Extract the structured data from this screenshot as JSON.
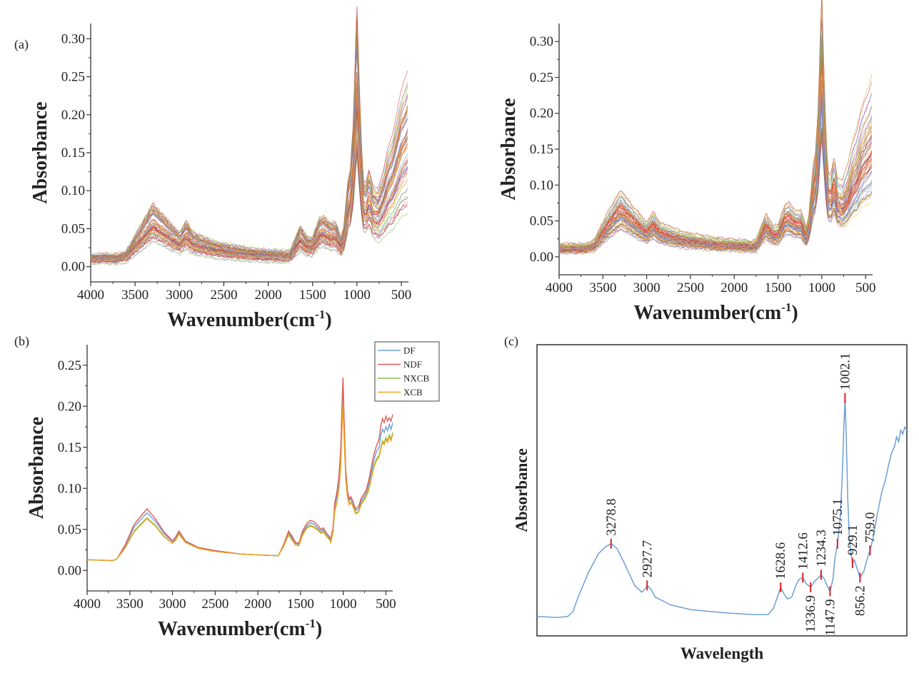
{
  "figure": {
    "panels": [
      {
        "id": "a",
        "label": "(a)"
      },
      {
        "id": "a2",
        "label": ""
      },
      {
        "id": "b",
        "label": "(b)"
      },
      {
        "id": "c",
        "label": "(c)"
      }
    ]
  },
  "chart_data": [
    {
      "id": "a",
      "type": "line",
      "title": "",
      "panel_label": "(a)",
      "xlabel": "Wavenumber(cm",
      "xlabel_sup": "-1",
      "xlabel_end": ")",
      "ylabel": "Absorbance",
      "xlim": [
        4000,
        420
      ],
      "ylim": [
        -0.02,
        0.32
      ],
      "xticks": [
        4000,
        3500,
        3000,
        2500,
        2000,
        1500,
        1000,
        500
      ],
      "yticks": [
        0.0,
        0.05,
        0.1,
        0.15,
        0.2,
        0.25,
        0.3
      ],
      "ytick_labels": [
        "0.00",
        "0.05",
        "0.10",
        "0.15",
        "0.20",
        "0.25",
        "0.30"
      ],
      "note": "many overlapping raw spectra",
      "series_count": 60,
      "representative": {
        "x": [
          4000,
          3700,
          3600,
          3450,
          3300,
          3150,
          3000,
          2925,
          2850,
          2600,
          2200,
          1800,
          1750,
          1640,
          1560,
          1500,
          1420,
          1380,
          1300,
          1240,
          1180,
          1150,
          1100,
          1075,
          1040,
          1002,
          960,
          930,
          900,
          860,
          820,
          760,
          700,
          650,
          600,
          550,
          500,
          450,
          420
        ],
        "y": [
          0.012,
          0.012,
          0.015,
          0.04,
          0.065,
          0.05,
          0.034,
          0.047,
          0.035,
          0.025,
          0.018,
          0.015,
          0.016,
          0.042,
          0.03,
          0.03,
          0.05,
          0.052,
          0.045,
          0.045,
          0.03,
          0.04,
          0.09,
          0.1,
          0.15,
          0.27,
          0.15,
          0.09,
          0.085,
          0.1,
          0.08,
          0.075,
          0.09,
          0.11,
          0.12,
          0.14,
          0.16,
          0.17,
          0.18
        ]
      }
    },
    {
      "id": "a2",
      "type": "line",
      "title": "",
      "panel_label": "",
      "xlabel": "Wavenumber(cm",
      "xlabel_sup": "-1",
      "xlabel_end": ")",
      "ylabel": "Absorbance",
      "xlim": [
        4000,
        420
      ],
      "ylim": [
        -0.025,
        0.325
      ],
      "xticks": [
        4000,
        3500,
        3000,
        2500,
        2000,
        1500,
        1000,
        500
      ],
      "yticks": [
        0.0,
        0.05,
        0.1,
        0.15,
        0.2,
        0.25,
        0.3
      ],
      "ytick_labels": [
        "0.00",
        "0.05",
        "0.10",
        "0.15",
        "0.20",
        "0.25",
        "0.30"
      ],
      "note": "many overlapping preprocessed spectra",
      "series_count": 60,
      "representative": {
        "x": [
          4000,
          3700,
          3600,
          3450,
          3300,
          3150,
          3000,
          2925,
          2850,
          2600,
          2200,
          1800,
          1750,
          1640,
          1560,
          1500,
          1420,
          1380,
          1300,
          1240,
          1180,
          1150,
          1100,
          1075,
          1040,
          1002,
          960,
          930,
          900,
          860,
          820,
          760,
          700,
          650,
          600,
          550,
          500,
          450,
          420
        ],
        "y": [
          0.012,
          0.012,
          0.016,
          0.045,
          0.07,
          0.052,
          0.035,
          0.047,
          0.035,
          0.025,
          0.018,
          0.015,
          0.016,
          0.045,
          0.032,
          0.032,
          0.055,
          0.057,
          0.048,
          0.048,
          0.03,
          0.042,
          0.095,
          0.11,
          0.16,
          0.29,
          0.15,
          0.09,
          0.085,
          0.105,
          0.08,
          0.075,
          0.09,
          0.11,
          0.12,
          0.14,
          0.15,
          0.16,
          0.17
        ]
      }
    },
    {
      "id": "b",
      "type": "line",
      "title": "",
      "panel_label": "(b)",
      "xlabel": "Wavenumber(cm",
      "xlabel_sup": "-1",
      "xlabel_end": ")",
      "ylabel": "Absorbance",
      "xlim": [
        4000,
        420
      ],
      "ylim": [
        -0.025,
        0.275
      ],
      "xticks": [
        4000,
        3500,
        3000,
        2500,
        2000,
        1500,
        1000,
        500
      ],
      "yticks": [
        0.0,
        0.05,
        0.1,
        0.15,
        0.2,
        0.25
      ],
      "ytick_labels": [
        "0.00",
        "0.05",
        "0.10",
        "0.15",
        "0.20",
        "0.25"
      ],
      "legend_position": "top-right",
      "x": [
        4000,
        3700,
        3650,
        3550,
        3450,
        3300,
        3200,
        3100,
        3000,
        2960,
        2925,
        2880,
        2850,
        2700,
        2500,
        2200,
        2000,
        1800,
        1760,
        1700,
        1640,
        1600,
        1560,
        1520,
        1480,
        1440,
        1420,
        1380,
        1340,
        1300,
        1260,
        1234,
        1200,
        1160,
        1147,
        1120,
        1100,
        1075,
        1050,
        1030,
        1015,
        1002,
        990,
        970,
        950,
        930,
        910,
        880,
        856,
        820,
        790,
        759,
        730,
        700,
        670,
        640,
        610,
        580,
        560,
        540,
        520,
        500,
        480,
        460,
        440,
        420
      ],
      "series": [
        {
          "name": "DF",
          "color": "#6c9fd6",
          "values": [
            0.013,
            0.012,
            0.014,
            0.03,
            0.053,
            0.07,
            0.06,
            0.045,
            0.035,
            0.04,
            0.047,
            0.04,
            0.035,
            0.028,
            0.024,
            0.02,
            0.019,
            0.018,
            0.018,
            0.03,
            0.046,
            0.04,
            0.033,
            0.032,
            0.045,
            0.052,
            0.055,
            0.058,
            0.056,
            0.052,
            0.048,
            0.05,
            0.045,
            0.04,
            0.037,
            0.05,
            0.078,
            0.09,
            0.11,
            0.14,
            0.19,
            0.228,
            0.18,
            0.12,
            0.095,
            0.085,
            0.088,
            0.08,
            0.073,
            0.075,
            0.085,
            0.09,
            0.095,
            0.105,
            0.12,
            0.135,
            0.145,
            0.15,
            0.165,
            0.172,
            0.168,
            0.175,
            0.17,
            0.178,
            0.172,
            0.18
          ]
        },
        {
          "name": "NDF",
          "color": "#e05a5a",
          "values": [
            0.013,
            0.012,
            0.014,
            0.032,
            0.056,
            0.075,
            0.063,
            0.047,
            0.036,
            0.041,
            0.048,
            0.041,
            0.036,
            0.028,
            0.024,
            0.02,
            0.019,
            0.018,
            0.018,
            0.031,
            0.048,
            0.042,
            0.034,
            0.033,
            0.047,
            0.055,
            0.058,
            0.061,
            0.059,
            0.055,
            0.05,
            0.052,
            0.046,
            0.041,
            0.038,
            0.052,
            0.082,
            0.095,
            0.115,
            0.148,
            0.2,
            0.235,
            0.185,
            0.123,
            0.097,
            0.087,
            0.09,
            0.082,
            0.075,
            0.078,
            0.088,
            0.093,
            0.098,
            0.11,
            0.126,
            0.142,
            0.152,
            0.16,
            0.176,
            0.185,
            0.18,
            0.188,
            0.182,
            0.186,
            0.182,
            0.19
          ]
        },
        {
          "name": "NXCB",
          "color": "#8bbf4e",
          "values": [
            0.013,
            0.012,
            0.014,
            0.028,
            0.048,
            0.064,
            0.055,
            0.042,
            0.033,
            0.038,
            0.045,
            0.039,
            0.034,
            0.027,
            0.023,
            0.02,
            0.019,
            0.018,
            0.018,
            0.029,
            0.044,
            0.038,
            0.031,
            0.031,
            0.043,
            0.05,
            0.053,
            0.055,
            0.053,
            0.05,
            0.046,
            0.048,
            0.043,
            0.038,
            0.035,
            0.047,
            0.073,
            0.083,
            0.1,
            0.128,
            0.172,
            0.204,
            0.165,
            0.112,
            0.09,
            0.081,
            0.084,
            0.077,
            0.07,
            0.072,
            0.082,
            0.087,
            0.092,
            0.1,
            0.114,
            0.128,
            0.136,
            0.14,
            0.15,
            0.158,
            0.155,
            0.162,
            0.158,
            0.165,
            0.16,
            0.168
          ]
        },
        {
          "name": "XCB",
          "color": "#f0a320",
          "values": [
            0.013,
            0.012,
            0.014,
            0.028,
            0.047,
            0.063,
            0.054,
            0.041,
            0.033,
            0.037,
            0.044,
            0.038,
            0.034,
            0.027,
            0.023,
            0.02,
            0.019,
            0.018,
            0.018,
            0.029,
            0.043,
            0.037,
            0.031,
            0.03,
            0.042,
            0.049,
            0.052,
            0.054,
            0.052,
            0.049,
            0.045,
            0.047,
            0.042,
            0.037,
            0.034,
            0.046,
            0.072,
            0.082,
            0.099,
            0.126,
            0.17,
            0.202,
            0.163,
            0.11,
            0.089,
            0.08,
            0.083,
            0.076,
            0.069,
            0.071,
            0.08,
            0.085,
            0.09,
            0.098,
            0.112,
            0.126,
            0.134,
            0.138,
            0.148,
            0.156,
            0.153,
            0.16,
            0.156,
            0.163,
            0.158,
            0.166
          ]
        }
      ]
    },
    {
      "id": "c",
      "type": "line",
      "title": "",
      "panel_label": "(c)",
      "xlabel": "Wavelength",
      "ylabel": "Absorbance",
      "xlim": [
        4000,
        400
      ],
      "ylim": [
        0.0,
        0.3
      ],
      "line_color": "#6c9fd6",
      "marker_color": "#e02020",
      "x": [
        4000,
        3800,
        3700,
        3650,
        3600,
        3500,
        3400,
        3330,
        3278.8,
        3220,
        3150,
        3050,
        2980,
        2950,
        2927.7,
        2890,
        2850,
        2700,
        2500,
        2200,
        1900,
        1750,
        1700,
        1660,
        1628.6,
        1590,
        1560,
        1520,
        1480,
        1450,
        1412.6,
        1380,
        1336.9,
        1300,
        1260,
        1234.3,
        1200,
        1170,
        1147.9,
        1120,
        1100,
        1075.1,
        1050,
        1030,
        1015,
        1002.1,
        990,
        975,
        960,
        945,
        929.1,
        910,
        880,
        856.2,
        820,
        790,
        759.0,
        730,
        700,
        670,
        640,
        610,
        580,
        550,
        520,
        500,
        480,
        460,
        440,
        420,
        400
      ],
      "y": [
        0.02,
        0.019,
        0.02,
        0.025,
        0.04,
        0.065,
        0.085,
        0.092,
        0.095,
        0.09,
        0.075,
        0.052,
        0.045,
        0.048,
        0.052,
        0.048,
        0.04,
        0.032,
        0.027,
        0.024,
        0.022,
        0.022,
        0.028,
        0.04,
        0.05,
        0.042,
        0.038,
        0.04,
        0.052,
        0.058,
        0.06,
        0.054,
        0.05,
        0.056,
        0.06,
        0.063,
        0.058,
        0.05,
        0.046,
        0.058,
        0.08,
        0.095,
        0.12,
        0.16,
        0.21,
        0.245,
        0.205,
        0.14,
        0.1,
        0.085,
        0.075,
        0.078,
        0.068,
        0.06,
        0.066,
        0.078,
        0.088,
        0.1,
        0.118,
        0.135,
        0.15,
        0.16,
        0.175,
        0.188,
        0.195,
        0.205,
        0.2,
        0.212,
        0.208,
        0.215,
        0.212
      ],
      "peaks": [
        {
          "label": "3278.8",
          "x": 3278.8,
          "pos": "above"
        },
        {
          "label": "2927.7",
          "x": 2927.7,
          "pos": "above"
        },
        {
          "label": "1628.6",
          "x": 1628.6,
          "pos": "above"
        },
        {
          "label": "1412.6",
          "x": 1412.6,
          "pos": "above"
        },
        {
          "label": "1336.9",
          "x": 1336.9,
          "pos": "below"
        },
        {
          "label": "1234.3",
          "x": 1234.3,
          "pos": "above"
        },
        {
          "label": "1147.9",
          "x": 1147.9,
          "pos": "below"
        },
        {
          "label": "1075.1",
          "x": 1075.1,
          "pos": "above"
        },
        {
          "label": "1002.1",
          "x": 1002.1,
          "pos": "above"
        },
        {
          "label": "929.1",
          "x": 929.1,
          "pos": "above"
        },
        {
          "label": "856.2",
          "x": 856.2,
          "pos": "below"
        },
        {
          "label": "759.0",
          "x": 759.0,
          "pos": "above"
        }
      ]
    }
  ]
}
